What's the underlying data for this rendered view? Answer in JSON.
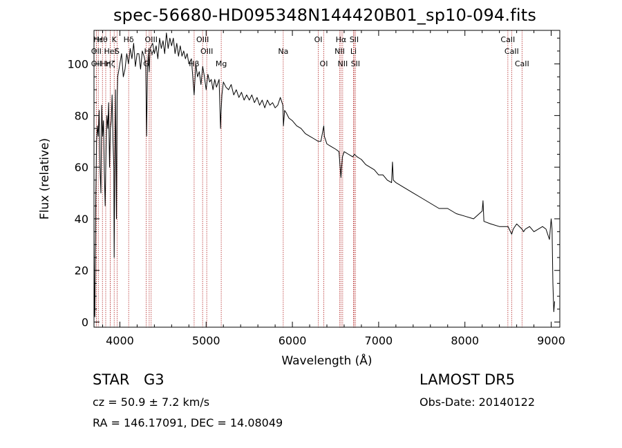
{
  "header": {
    "title": "spec-56680-HD095348N144420B01_sp10-094.fits"
  },
  "info": {
    "class": "STAR",
    "subclass": "G3",
    "survey": "LAMOST DR5",
    "cz": "cz = 50.9 ± 7.2 km/s",
    "obs_date": "Obs-Date: 20140122",
    "radec": "RA = 146.17091, DEC =  14.08049"
  },
  "colors": {
    "spectrum": "#000000",
    "line_marker": "#b22222",
    "axis": "#000000"
  },
  "chart_data": {
    "type": "line",
    "title": "spec-56680-HD095348N144420B01_sp10-094.fits",
    "xlabel": "Wavelength (Å)",
    "ylabel": "Flux (relative)",
    "xlim": [
      3700,
      9100
    ],
    "ylim": [
      -2,
      113
    ],
    "xticks": [
      4000,
      5000,
      6000,
      7000,
      8000,
      9000
    ],
    "yticks": [
      0,
      20,
      40,
      60,
      80,
      100
    ],
    "grid": false,
    "series": [
      {
        "x": [
          3700,
          3705,
          3710,
          3720,
          3730,
          3740,
          3750,
          3760,
          3770,
          3780,
          3790,
          3800,
          3810,
          3820,
          3830,
          3840,
          3850,
          3860,
          3870,
          3880,
          3890,
          3900,
          3910,
          3920,
          3930,
          3934,
          3940,
          3950,
          3960,
          3968,
          3975,
          3990,
          4000,
          4020,
          4040,
          4060,
          4080,
          4100,
          4120,
          4140,
          4160,
          4180,
          4200,
          4220,
          4240,
          4260,
          4280,
          4300,
          4310,
          4320,
          4330,
          4340,
          4350,
          4380,
          4400,
          4420,
          4440,
          4460,
          4480,
          4500,
          4520,
          4540,
          4560,
          4580,
          4600,
          4620,
          4640,
          4660,
          4680,
          4700,
          4720,
          4740,
          4760,
          4780,
          4800,
          4830,
          4861,
          4880,
          4900,
          4920,
          4940,
          4960,
          4980,
          5000,
          5020,
          5040,
          5060,
          5080,
          5100,
          5120,
          5150,
          5167,
          5172,
          5183,
          5200,
          5230,
          5260,
          5290,
          5320,
          5350,
          5380,
          5410,
          5440,
          5470,
          5500,
          5530,
          5560,
          5590,
          5620,
          5650,
          5680,
          5710,
          5740,
          5770,
          5800,
          5830,
          5860,
          5880,
          5890,
          5896,
          5910,
          5930,
          5960,
          6000,
          6050,
          6100,
          6150,
          6200,
          6250,
          6300,
          6330,
          6364,
          6370,
          6400,
          6450,
          6500,
          6540,
          6563,
          6580,
          6600,
          6650,
          6700,
          6720,
          6750,
          6800,
          6850,
          6900,
          6950,
          7000,
          7050,
          7100,
          7150,
          7160,
          7170,
          7200,
          7300,
          7400,
          7500,
          7600,
          7700,
          7800,
          7900,
          8000,
          8100,
          8200,
          8210,
          8220,
          8300,
          8400,
          8500,
          8542,
          8560,
          8600,
          8662,
          8680,
          8700,
          8750,
          8800,
          8850,
          8900,
          8940,
          8960,
          8980,
          9000,
          9010,
          9020,
          9030,
          9040
        ],
        "y": [
          32,
          5,
          2,
          45,
          70,
          76,
          72,
          82,
          60,
          50,
          84,
          72,
          78,
          58,
          45,
          68,
          80,
          75,
          85,
          60,
          75,
          78,
          88,
          70,
          60,
          25,
          55,
          90,
          40,
          85,
          95,
          98,
          100,
          104,
          95,
          98,
          104,
          100,
          106,
          102,
          108,
          99,
          104,
          104,
          98,
          105,
          103,
          100,
          72,
          98,
          104,
          97,
          106,
          108,
          104,
          107,
          102,
          110,
          106,
          109,
          104,
          112,
          106,
          110,
          107,
          110,
          104,
          108,
          103,
          107,
          103,
          105,
          102,
          104,
          100,
          102,
          88,
          100,
          95,
          97,
          92,
          99,
          95,
          90,
          96,
          93,
          94,
          90,
          94,
          91,
          94,
          75,
          80,
          88,
          93,
          91,
          90,
          92,
          88,
          90,
          87,
          89,
          86,
          88,
          86,
          88,
          85,
          87,
          84,
          86,
          83,
          86,
          84,
          85,
          83,
          84,
          87,
          85,
          84,
          76,
          82,
          81,
          79,
          78,
          76,
          75,
          73,
          72,
          71,
          70,
          70,
          76,
          72,
          69,
          68,
          67,
          66,
          56,
          64,
          66,
          65,
          64,
          65,
          64,
          63,
          61,
          60,
          59,
          57,
          57,
          55,
          54,
          62,
          55,
          54,
          52,
          50,
          48,
          46,
          44,
          44,
          42,
          41,
          40,
          43,
          47,
          39,
          38,
          37,
          37,
          34,
          36,
          38,
          36,
          35,
          36,
          37,
          35,
          36,
          37,
          36,
          34,
          32,
          40,
          36,
          15,
          4,
          8
        ]
      }
    ],
    "lines": [
      {
        "label": "OII",
        "wavelength": 3727,
        "row": 2
      },
      {
        "label": "OII",
        "wavelength": 3727,
        "row": 3
      },
      {
        "label": "Hε",
        "wavelength": 3750,
        "row": 1
      },
      {
        "label": "Hη",
        "wavelength": 3836,
        "row": 3
      },
      {
        "label": "Hθ",
        "wavelength": 3798,
        "row": 1
      },
      {
        "label": "Hζ",
        "wavelength": 3889,
        "row": 3
      },
      {
        "label": "HeI",
        "wavelength": 3889,
        "row": 2
      },
      {
        "label": "K",
        "wavelength": 3934,
        "row": 1
      },
      {
        "label": "S",
        "wavelength": 3968,
        "row": 2
      },
      {
        "label": "Hδ",
        "wavelength": 4102,
        "row": 1
      },
      {
        "label": "Hγ",
        "wavelength": 4340,
        "row": 2
      },
      {
        "label": "G",
        "wavelength": 4305,
        "row": 3
      },
      {
        "label": "OIII",
        "wavelength": 4363,
        "row": 1
      },
      {
        "label": "Hβ",
        "wavelength": 4861,
        "row": 3
      },
      {
        "label": "OIII",
        "wavelength": 4959,
        "row": 1
      },
      {
        "label": "OIII",
        "wavelength": 5007,
        "row": 2
      },
      {
        "label": "Mg",
        "wavelength": 5175,
        "row": 3
      },
      {
        "label": "Na",
        "wavelength": 5894,
        "row": 2
      },
      {
        "label": "OI",
        "wavelength": 6300,
        "row": 1
      },
      {
        "label": "OI",
        "wavelength": 6364,
        "row": 3
      },
      {
        "label": "Hα",
        "wavelength": 6563,
        "row": 1
      },
      {
        "label": "NII",
        "wavelength": 6548,
        "row": 2
      },
      {
        "label": "NII",
        "wavelength": 6583,
        "row": 3
      },
      {
        "label": "Li",
        "wavelength": 6708,
        "row": 2
      },
      {
        "label": "SII",
        "wavelength": 6716,
        "row": 1
      },
      {
        "label": "SII",
        "wavelength": 6731,
        "row": 3
      },
      {
        "label": "CaII",
        "wavelength": 8498,
        "row": 1
      },
      {
        "label": "CaII",
        "wavelength": 8542,
        "row": 2
      },
      {
        "label": "CaII",
        "wavelength": 8662,
        "row": 3
      }
    ]
  }
}
